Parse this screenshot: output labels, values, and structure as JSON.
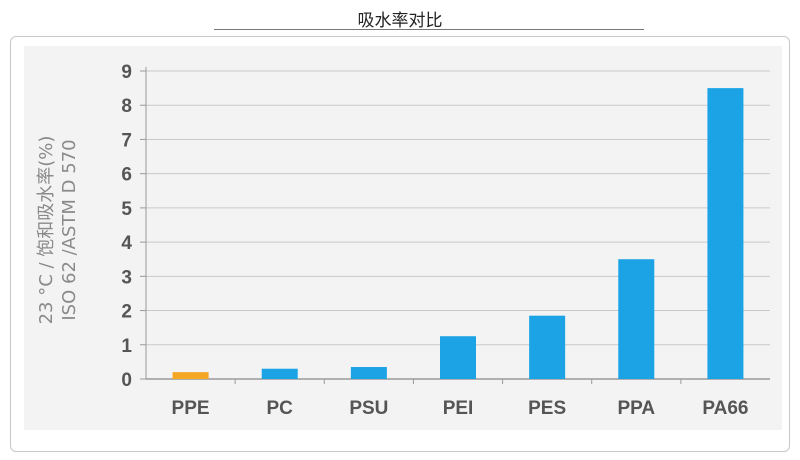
{
  "chart_data": {
    "type": "bar",
    "title": "吸水率对比",
    "ylabel": [
      "23 °C / 饱和吸水率(%)",
      "ISO 62 /ASTM D 570"
    ],
    "xlabel": "",
    "categories": [
      "PPE",
      "PC",
      "PSU",
      "PEI",
      "PES",
      "PPA",
      "PA66"
    ],
    "values": [
      0.2,
      0.3,
      0.35,
      1.25,
      1.85,
      3.5,
      8.5
    ],
    "bar_colors": [
      "#f5a623",
      "#1ba3e6",
      "#1ba3e6",
      "#1ba3e6",
      "#1ba3e6",
      "#1ba3e6",
      "#1ba3e6"
    ],
    "ylim": [
      0,
      9
    ],
    "yticks": [
      0,
      1,
      2,
      3,
      4,
      5,
      6,
      7,
      8,
      9
    ],
    "grid": true,
    "legend": "none"
  }
}
